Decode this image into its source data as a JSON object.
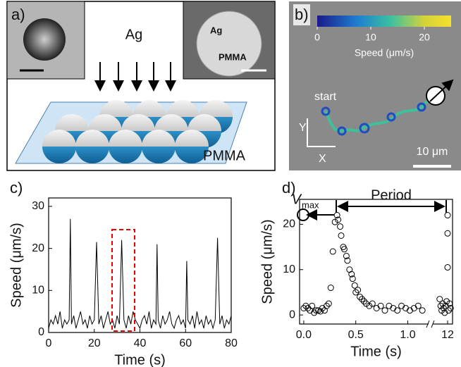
{
  "panel_a": {
    "label": "a)",
    "source": "Ag",
    "sem_labels": [
      "Ag",
      "PMMA"
    ],
    "substrate": "PMMA"
  },
  "panel_b": {
    "label": "b)",
    "colorbar": {
      "lim": [
        0,
        25
      ],
      "ticks": [
        0,
        10,
        20
      ],
      "label": "Speed (μm/s)"
    },
    "start": "start",
    "axis_y": "Y",
    "axis_x": "X",
    "scale": "10 μm"
  },
  "chart_data": [
    {
      "type": "line",
      "label": "c)",
      "x_label": "Time (s)",
      "y_label": "Speed (μm/s)",
      "color": "#000000",
      "xlim": [
        0,
        80
      ],
      "xticks": [
        0,
        20,
        40,
        60,
        80
      ],
      "ylim": [
        0,
        32
      ],
      "yticks": [
        0,
        10,
        20,
        30
      ],
      "x": [
        0,
        1,
        2,
        3,
        4,
        5,
        6,
        7,
        8,
        9,
        9.5,
        10,
        11,
        12,
        13,
        14,
        15,
        16,
        17,
        18,
        19,
        20,
        21,
        22,
        23,
        24,
        25,
        26,
        27,
        28,
        29,
        30,
        31,
        32,
        33,
        34,
        35,
        36,
        37,
        38,
        39,
        40,
        41,
        42,
        43,
        44,
        45,
        46,
        47,
        47.5,
        48,
        49,
        50,
        51,
        52,
        53,
        54,
        55,
        56,
        57,
        58,
        59,
        60,
        60.5,
        61,
        62,
        63,
        64,
        65,
        66,
        67,
        68,
        69,
        70,
        71,
        72,
        73,
        74,
        75,
        76,
        77,
        78,
        79,
        80
      ],
      "values": [
        1,
        3,
        2,
        4,
        2,
        5,
        1,
        3,
        2,
        3,
        27,
        2,
        4,
        1,
        3,
        5,
        2,
        3,
        1,
        4,
        2,
        3,
        21.5,
        2,
        4,
        1,
        3,
        5,
        2,
        3,
        1,
        4,
        2,
        22,
        3,
        1,
        4,
        2,
        5,
        3,
        2,
        1,
        3,
        4,
        2,
        5,
        1,
        3,
        2,
        21,
        3,
        1,
        4,
        2,
        3,
        5,
        2,
        1,
        3,
        4,
        2,
        3,
        1,
        17,
        3,
        2,
        4,
        1,
        5,
        2,
        3,
        1,
        4,
        2,
        3,
        1,
        3,
        22.5,
        2,
        4,
        1,
        3,
        2,
        4
      ]
    },
    {
      "type": "scatter",
      "label": "d)",
      "x_label": "Time (s)",
      "y_label": "Speed (μm/s)",
      "color": "#000000",
      "annotations": {
        "v": "V",
        "v_sub": "max",
        "period": "Period"
      },
      "xlim": [
        -0.04,
        12.05
      ],
      "xbreak": [
        1.2,
        11.85
      ],
      "xticks": [
        {
          "value": 0,
          "label": "0.0"
        },
        0.5,
        {
          "value": 1,
          "label": "1.0"
        },
        12
      ],
      "ylim": [
        -2,
        25.5
      ],
      "yticks": [
        0,
        10,
        20
      ],
      "x": [
        0,
        0.02,
        0.04,
        0.06,
        0.08,
        0.1,
        0.12,
        0.14,
        0.16,
        0.18,
        0.2,
        0.22,
        0.24,
        0.26,
        0.28,
        0.3,
        0.32,
        0.33,
        0.35,
        0.36,
        0.38,
        0.39,
        0.41,
        0.42,
        0.44,
        0.46,
        0.47,
        0.49,
        0.5,
        0.52,
        0.54,
        0.56,
        0.58,
        0.6,
        0.63,
        0.66,
        0.7,
        0.74,
        0.78,
        0.82,
        0.86,
        0.9,
        0.94,
        0.98,
        1.02,
        1.06,
        1.1,
        1.14,
        11.92,
        11.93,
        11.94,
        11.95,
        11.96,
        11.97,
        11.98,
        11.99,
        12,
        12,
        12,
        12.01,
        12.02,
        12.03
      ],
      "values": [
        1.5,
        2,
        1.5,
        1,
        2,
        0.5,
        1,
        1,
        0.8,
        1.5,
        1,
        2,
        2.5,
        6,
        14,
        20.5,
        22,
        21,
        19.5,
        17.5,
        15,
        14.5,
        13,
        12,
        10,
        9,
        8,
        6.5,
        5,
        5.5,
        4,
        3.5,
        3,
        2.5,
        2,
        2.5,
        1.5,
        2,
        1,
        2,
        1.5,
        1,
        2,
        1.5,
        1,
        1.5,
        2,
        1,
        3.5,
        2,
        1,
        2.5,
        1.5,
        0.5,
        2,
        3,
        10.5,
        18,
        22,
        1,
        2.5,
        1.5
      ]
    }
  ]
}
